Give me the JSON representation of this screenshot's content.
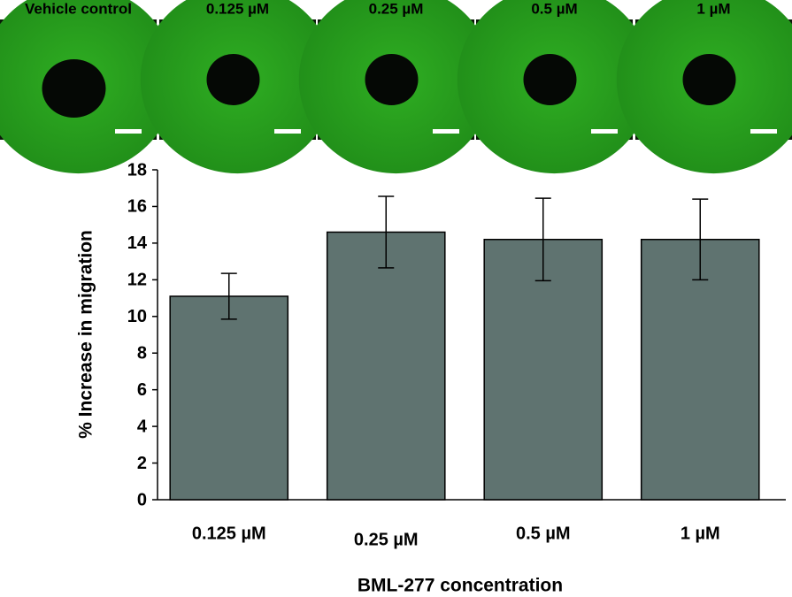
{
  "panels": [
    "Vehicle control",
    "0.125 µM",
    "0.25 µM",
    "0.5 µM",
    "1 µM"
  ],
  "chart_data": {
    "type": "bar",
    "y_label": "% Increase in migration",
    "x_label": "BML-277 concentration",
    "categories": [
      "0.125 µM",
      "0.25  µM",
      "0.5 µM",
      "1 µM"
    ],
    "values": [
      11.1,
      14.6,
      14.2,
      14.2
    ],
    "errors": [
      1.25,
      1.95,
      2.25,
      2.2
    ],
    "color": "#5f7370",
    "ylim": [
      0,
      18
    ],
    "yticks": [
      0,
      2,
      4,
      6,
      8,
      10,
      12,
      14,
      16,
      18
    ],
    "grid": false
  }
}
